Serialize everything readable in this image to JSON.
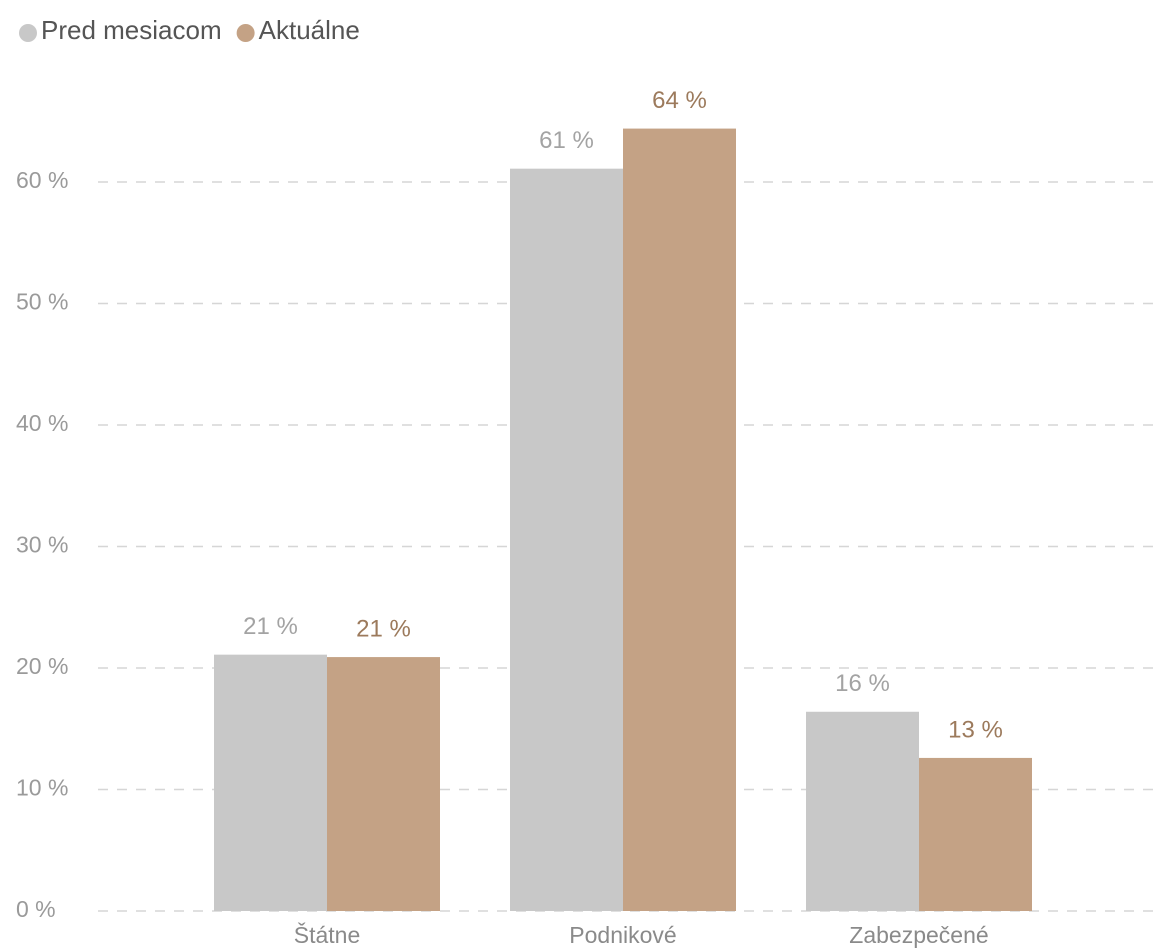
{
  "chart_data": {
    "type": "bar",
    "categories": [
      "Štátne",
      "Podnikové",
      "Zabezpečené"
    ],
    "series": [
      {
        "name": "Pred mesiacom",
        "color": "#c8c8c8",
        "label_color": "#a3a3a3",
        "values": [
          21.1,
          61.1,
          16.4
        ],
        "value_labels": [
          "21 %",
          "61 %",
          "16 %"
        ]
      },
      {
        "name": "Aktuálne",
        "color": "#c4a285",
        "label_color": "#9c7a5c",
        "values": [
          20.9,
          64.4,
          12.6
        ],
        "value_labels": [
          "21 %",
          "64 %",
          "13 %"
        ]
      }
    ],
    "ylim": [
      0,
      67
    ],
    "yticks": [
      {
        "value": 0,
        "label": "0 %"
      },
      {
        "value": 10,
        "label": "10 %"
      },
      {
        "value": 20,
        "label": "20 %"
      },
      {
        "value": 30,
        "label": "30 %"
      },
      {
        "value": 40,
        "label": "40 %"
      },
      {
        "value": 50,
        "label": "50 %"
      },
      {
        "value": 60,
        "label": "60 %"
      }
    ],
    "grid": true,
    "legend": "top-left"
  }
}
